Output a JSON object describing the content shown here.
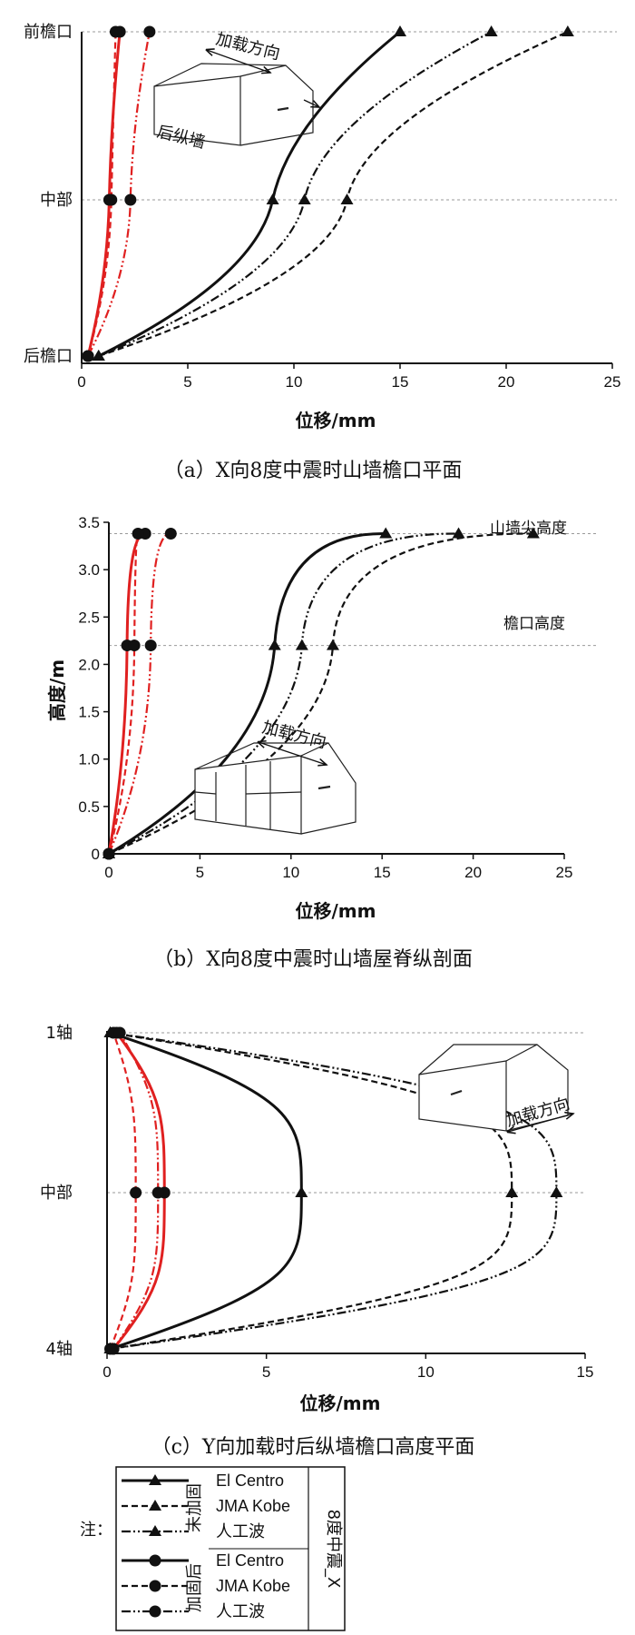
{
  "chart_data": [
    {
      "type": "line",
      "panel": "a",
      "caption": "（a）X向8度中震时山墙檐口平面",
      "xlabel": "位移/mm",
      "ylabel": "",
      "xlim": [
        0,
        25
      ],
      "xticks": [
        0,
        5,
        10,
        15,
        20,
        25
      ],
      "categories": [
        "后檐口",
        "中部",
        "前檐口"
      ],
      "grid": "dashed reference lines at category levels",
      "sketch_labels": {
        "load": "加载方向",
        "wall": "后纵墙"
      },
      "series": [
        {
          "name": "未加固 El Centro",
          "values": [
            0.8,
            9.0,
            15.0
          ]
        },
        {
          "name": "未加固 JMA Kobe",
          "values": [
            0.8,
            12.5,
            22.9
          ]
        },
        {
          "name": "未加固 人工波",
          "values": [
            0.8,
            10.5,
            19.3
          ]
        },
        {
          "name": "加固后 El Centro",
          "values": [
            0.3,
            1.3,
            1.8
          ]
        },
        {
          "name": "加固后 JMA Kobe",
          "values": [
            0.3,
            1.4,
            1.6
          ]
        },
        {
          "name": "加固后 人工波",
          "values": [
            0.3,
            2.3,
            3.2
          ]
        }
      ]
    },
    {
      "type": "line",
      "panel": "b",
      "caption": "（b）X向8度中震时山墙屋脊纵剖面",
      "xlabel": "位移/mm",
      "ylabel": "高度/m",
      "xlim": [
        0,
        25
      ],
      "ylim": [
        0,
        3.5
      ],
      "xticks": [
        0,
        5,
        10,
        15,
        20,
        25
      ],
      "yticks": [
        "0",
        "0.5",
        "1.0",
        "1.5",
        "2.0",
        "2.5",
        "3.0",
        "3.5"
      ],
      "annotations": [
        "山墙尖高度",
        "檐口高度"
      ],
      "reference_heights": [
        3.38,
        2.2
      ],
      "sketch_labels": {
        "load": "加载方向"
      },
      "series": [
        {
          "name": "未加固 El Centro",
          "x": [
            0,
            9.1,
            15.2
          ],
          "y": [
            0,
            2.2,
            3.38
          ]
        },
        {
          "name": "未加固 JMA Kobe",
          "x": [
            0,
            12.3,
            23.3
          ],
          "y": [
            0,
            2.2,
            3.38
          ]
        },
        {
          "name": "未加固 人工波",
          "x": [
            0,
            10.6,
            19.2
          ],
          "y": [
            0,
            2.2,
            3.38
          ]
        },
        {
          "name": "加固后 El Centro",
          "x": [
            0,
            1.0,
            2.0
          ],
          "y": [
            0,
            2.2,
            3.38
          ]
        },
        {
          "name": "加固后 JMA Kobe",
          "x": [
            0,
            1.4,
            1.6
          ],
          "y": [
            0,
            2.2,
            3.38
          ]
        },
        {
          "name": "加固后 人工波",
          "x": [
            0,
            2.3,
            3.4
          ],
          "y": [
            0,
            2.2,
            3.38
          ]
        }
      ]
    },
    {
      "type": "line",
      "panel": "c",
      "caption": "（c）Y向加载时后纵墙檐口高度平面",
      "xlabel": "位移/mm",
      "ylabel": "",
      "xlim": [
        0,
        15
      ],
      "xticks": [
        0,
        5,
        10,
        15
      ],
      "categories": [
        "4轴",
        "中部",
        "1轴"
      ],
      "sketch_labels": {
        "load": "加载方向"
      },
      "series": [
        {
          "name": "未加固 El Centro",
          "values": [
            0.1,
            6.1,
            0.1
          ]
        },
        {
          "name": "未加固 JMA Kobe",
          "values": [
            0.1,
            12.7,
            0.1
          ]
        },
        {
          "name": "未加固 人工波",
          "values": [
            0.1,
            14.1,
            0.1
          ]
        },
        {
          "name": "加固后 El Centro",
          "values": [
            0.2,
            1.8,
            0.3
          ]
        },
        {
          "name": "加固后 JMA Kobe",
          "values": [
            0.1,
            0.9,
            0.2
          ]
        },
        {
          "name": "加固后 人工波",
          "values": [
            0.2,
            1.6,
            0.4
          ]
        }
      ]
    }
  ],
  "legend": {
    "note": "注：",
    "group_unreinforced": "未加固",
    "group_reinforced": "加固后",
    "intensity": "8度中震_X",
    "items": [
      "El Centro",
      "JMA Kobe",
      "人工波",
      "El Centro",
      "JMA Kobe",
      "人工波"
    ]
  },
  "colors": {
    "unreinforced": "#111111",
    "reinforced": "#e02020",
    "grid": "#999999"
  }
}
